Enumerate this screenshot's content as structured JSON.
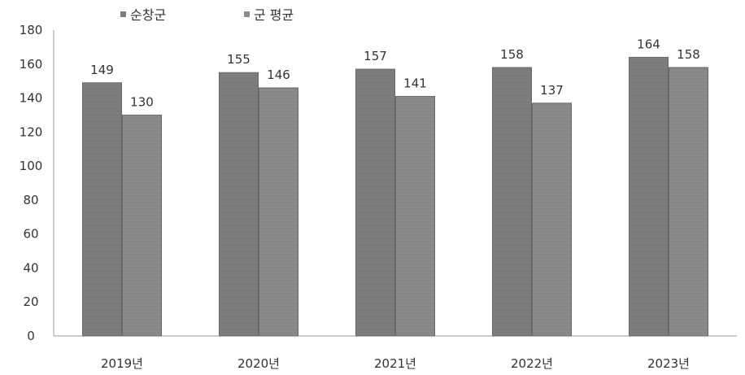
{
  "chart_data": {
    "type": "bar",
    "categories": [
      "2019년",
      "2020년",
      "2021년",
      "2022년",
      "2023년"
    ],
    "series": [
      {
        "name": "순창군",
        "values": [
          149,
          155,
          157,
          158,
          164
        ],
        "color": "#7d7d7d"
      },
      {
        "name": "군 평균",
        "values": [
          130,
          146,
          141,
          137,
          158
        ],
        "color": "#8a8a8a"
      }
    ],
    "ylim": [
      0,
      180
    ],
    "yticks": [
      0,
      20,
      40,
      60,
      80,
      100,
      120,
      140,
      160,
      180
    ],
    "grid": false,
    "legend": "top-left",
    "data_labels": true
  }
}
